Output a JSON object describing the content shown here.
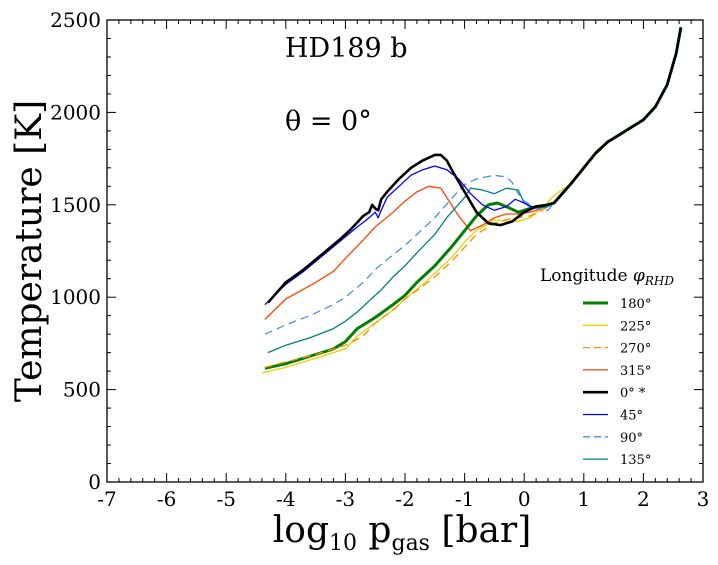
{
  "chart_data": {
    "type": "line",
    "annotations": [
      "HD189 b",
      "θ = 0°"
    ],
    "xlabel": "log",
    "xlabel_sub": "10",
    "xlabel_rest": " p",
    "xlabel_sub2": "gas",
    "xlabel_unit": " [bar]",
    "ylabel": "Temperature [K]",
    "xlim": [
      -7,
      3
    ],
    "ylim": [
      0,
      2500
    ],
    "xticks": [
      -7,
      -6,
      -5,
      -4,
      -3,
      -2,
      -1,
      0,
      1,
      2,
      3
    ],
    "xtick_labels": [
      "-7",
      "-6",
      "-5",
      "-4",
      "-3",
      "-2",
      "-1",
      "0",
      "1",
      "2",
      "3"
    ],
    "yticks": [
      0,
      500,
      1000,
      1500,
      2000,
      2500
    ],
    "ytick_labels": [
      "0",
      "500",
      "1000",
      "1500",
      "2000",
      "2500"
    ],
    "grid": false,
    "legend": {
      "title_text": "Longitude ",
      "title_phi": "φ",
      "title_sub": "RHD",
      "position": "lower-right"
    },
    "shared_tail": [
      [
        0.5,
        1510
      ],
      [
        0.8,
        1620
      ],
      [
        1.0,
        1700
      ],
      [
        1.2,
        1780
      ],
      [
        1.4,
        1840
      ],
      [
        1.6,
        1880
      ],
      [
        1.8,
        1920
      ],
      [
        2.0,
        1960
      ],
      [
        2.2,
        2030
      ],
      [
        2.4,
        2150
      ],
      [
        2.55,
        2320
      ],
      [
        2.63,
        2460
      ]
    ],
    "series": [
      {
        "name": "180°",
        "color": "#008000",
        "width": 3,
        "dash": "",
        "x": [
          -4.35,
          -4.0,
          -3.5,
          -3.2,
          -3.0,
          -2.8,
          -2.5,
          -2.2,
          -2.0,
          -1.8,
          -1.5,
          -1.2,
          -1.0,
          -0.8,
          -0.6,
          -0.45,
          -0.3,
          -0.1,
          0.0,
          0.2,
          0.4
        ],
        "y": [
          615,
          640,
          690,
          720,
          760,
          830,
          890,
          960,
          1010,
          1080,
          1170,
          1280,
          1360,
          1440,
          1500,
          1510,
          1490,
          1460,
          1470,
          1490,
          1500
        ]
      },
      {
        "name": "225°",
        "color": "#e6d200",
        "width": 1.3,
        "dash": "",
        "x": [
          -4.4,
          -4.0,
          -3.5,
          -3.0,
          -2.8,
          -2.5,
          -2.2,
          -2.0,
          -1.7,
          -1.5,
          -1.2,
          -1.0,
          -0.8,
          -0.5,
          -0.3,
          -0.1,
          0.1,
          0.3,
          0.5
        ],
        "y": [
          590,
          620,
          670,
          720,
          790,
          860,
          930,
          990,
          1070,
          1130,
          1220,
          1300,
          1360,
          1420,
          1410,
          1410,
          1430,
          1480,
          1550
        ]
      },
      {
        "name": "270°",
        "color": "#ff8c00",
        "width": 1.3,
        "dash": "8,5",
        "x": [
          -4.35,
          -4.0,
          -3.5,
          -3.0,
          -2.7,
          -2.5,
          -2.2,
          -2.0,
          -1.7,
          -1.5,
          -1.2,
          -1.0,
          -0.8,
          -0.5,
          -0.3,
          -0.1,
          0.1,
          0.3
        ],
        "y": [
          620,
          650,
          690,
          740,
          790,
          860,
          930,
          990,
          1060,
          1110,
          1200,
          1270,
          1340,
          1400,
          1420,
          1430,
          1440,
          1470
        ]
      },
      {
        "name": "315°",
        "color": "#ff4500",
        "width": 1.3,
        "dash": "",
        "x": [
          -4.35,
          -4.0,
          -3.5,
          -3.2,
          -3.0,
          -2.7,
          -2.5,
          -2.2,
          -2.0,
          -1.8,
          -1.6,
          -1.4,
          -1.3,
          -1.1,
          -0.9,
          -0.7,
          -0.5,
          -0.3,
          -0.1,
          0.1,
          0.3
        ],
        "y": [
          880,
          990,
          1080,
          1140,
          1210,
          1310,
          1380,
          1460,
          1520,
          1570,
          1600,
          1590,
          1540,
          1440,
          1360,
          1390,
          1430,
          1450,
          1450,
          1460,
          1480
        ]
      },
      {
        "name": "0° *",
        "color": "#000000",
        "width": 2.6,
        "dash": "",
        "x": [
          -4.3,
          -4.0,
          -3.7,
          -3.4,
          -3.1,
          -2.9,
          -2.7,
          -2.6,
          -2.55,
          -2.5,
          -2.45,
          -2.4,
          -2.3,
          -2.1,
          -1.9,
          -1.7,
          -1.5,
          -1.4,
          -1.3,
          -1.2,
          -1.0,
          -0.8,
          -0.6,
          -0.4,
          -0.2,
          0.0,
          0.2,
          0.4
        ],
        "y": [
          970,
          1080,
          1150,
          1230,
          1310,
          1370,
          1440,
          1460,
          1500,
          1480,
          1470,
          1530,
          1570,
          1640,
          1700,
          1740,
          1770,
          1770,
          1740,
          1680,
          1570,
          1460,
          1400,
          1390,
          1410,
          1460,
          1490,
          1500
        ]
      },
      {
        "name": "45°",
        "color": "#0000ff",
        "width": 1.3,
        "dash": "",
        "x": [
          -4.35,
          -4.0,
          -3.7,
          -3.4,
          -3.1,
          -2.8,
          -2.6,
          -2.5,
          -2.45,
          -2.4,
          -2.3,
          -2.1,
          -1.9,
          -1.7,
          -1.5,
          -1.3,
          -1.1,
          -0.9,
          -0.7,
          -0.5,
          -0.3,
          -0.15,
          0.0,
          0.1,
          0.3
        ],
        "y": [
          960,
          1070,
          1140,
          1220,
          1300,
          1380,
          1430,
          1460,
          1430,
          1470,
          1540,
          1600,
          1660,
          1690,
          1710,
          1690,
          1640,
          1560,
          1500,
          1470,
          1490,
          1530,
          1510,
          1490,
          1490
        ]
      },
      {
        "name": "90°",
        "color": "#4a90e2",
        "width": 1.3,
        "dash": "8,5",
        "x": [
          -4.35,
          -4.0,
          -3.6,
          -3.2,
          -3.0,
          -2.7,
          -2.5,
          -2.2,
          -2.0,
          -1.8,
          -1.5,
          -1.2,
          -1.0,
          -0.8,
          -0.5,
          -0.3,
          -0.2,
          -0.1,
          0.0,
          0.2,
          0.4
        ],
        "y": [
          800,
          850,
          900,
          960,
          1000,
          1080,
          1150,
          1230,
          1280,
          1340,
          1430,
          1540,
          1610,
          1640,
          1660,
          1650,
          1620,
          1560,
          1520,
          1480,
          1470
        ]
      },
      {
        "name": "135°",
        "color": "#008080",
        "width": 1.3,
        "dash": "",
        "x": [
          -4.3,
          -4.0,
          -3.6,
          -3.2,
          -3.0,
          -2.8,
          -2.6,
          -2.4,
          -2.2,
          -2.0,
          -1.8,
          -1.5,
          -1.3,
          -1.0,
          -0.9,
          -0.7,
          -0.5,
          -0.3,
          -0.1,
          0.0,
          0.2,
          0.4
        ],
        "y": [
          700,
          740,
          780,
          830,
          870,
          920,
          980,
          1040,
          1110,
          1170,
          1240,
          1340,
          1430,
          1540,
          1590,
          1580,
          1560,
          1590,
          1580,
          1510,
          1480,
          1490
        ]
      }
    ]
  }
}
